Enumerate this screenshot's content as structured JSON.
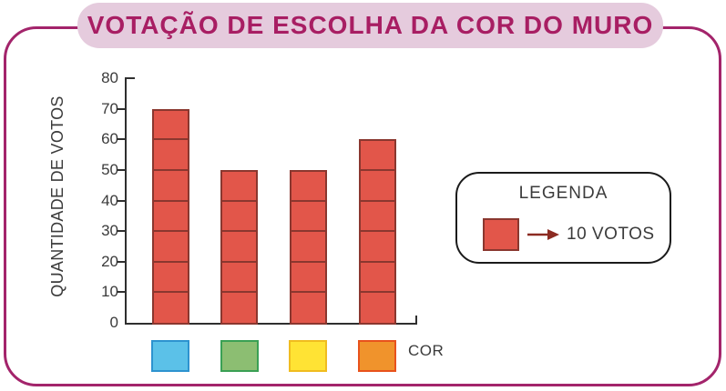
{
  "title": "VOTAÇÃO DE ESCOLHA DA COR DO MURO",
  "colors": {
    "frame_border": "#A3246B",
    "title_bg": "#E5CBDD",
    "title_text": "#A81E63",
    "bar_fill": "#E2564A",
    "bar_border": "#8A372F",
    "axis_line": "#2F2F2F",
    "axis_text": "#3B3B3B",
    "legend_border": "#1A1A1A",
    "legend_arrow": "#8C2B22"
  },
  "chart_data": {
    "type": "bar",
    "title": "VOTAÇÃO DE ESCOLHA DA COR DO MURO",
    "ylabel": "QUANTIDADE DE VOTOS",
    "xlabel": "COR",
    "ylim": [
      0,
      80
    ],
    "yticks": [
      0,
      10,
      20,
      30,
      40,
      50,
      60,
      70,
      80
    ],
    "grid": false,
    "unit_per_segment": 10,
    "categories": [
      {
        "name": "blue",
        "fill": "#5BC1E8",
        "border": "#2D93CF"
      },
      {
        "name": "green",
        "fill": "#8CBE72",
        "border": "#3AA054"
      },
      {
        "name": "yellow",
        "fill": "#FFE334",
        "border": "#F0BC1F"
      },
      {
        "name": "orange",
        "fill": "#F0932C",
        "border": "#E8521C"
      }
    ],
    "values": [
      70,
      50,
      50,
      60
    ],
    "legend_position": "right",
    "legend": {
      "title": "LEGENDA",
      "item_label": "10 VOTOS"
    }
  }
}
